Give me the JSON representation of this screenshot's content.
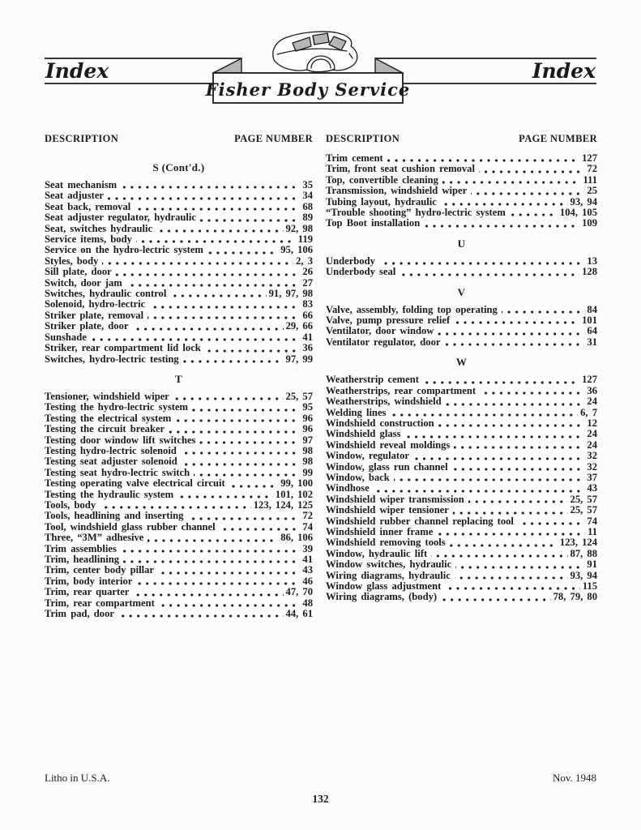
{
  "header": {
    "left_title": "Index",
    "right_title": "Index",
    "banner_title": "Fisher Body Service"
  },
  "column_headers": {
    "description": "DESCRIPTION",
    "page_number": "PAGE NUMBER"
  },
  "columns": [
    {
      "sections": [
        {
          "heading": "S (Cont'd.)",
          "entries": [
            {
              "label": "Seat mechanism",
              "pages": "35"
            },
            {
              "label": "Seat adjuster",
              "pages": "34"
            },
            {
              "label": "Seat back, removal",
              "pages": "68"
            },
            {
              "label": "Seat adjuster regulator, hydraulic",
              "pages": "89"
            },
            {
              "label": "Seat, switches hydraulic",
              "pages": "92, 98"
            },
            {
              "label": "Service items, body",
              "pages": "119"
            },
            {
              "label": "Service on the hydro-lectric system",
              "pages": "95, 106"
            },
            {
              "label": "Styles, body",
              "pages": "2, 3"
            },
            {
              "label": "Sill plate, door",
              "pages": "26"
            },
            {
              "label": "Switch, door jam",
              "pages": "27"
            },
            {
              "label": "Switches, hydraulic control",
              "pages": "91, 97, 98"
            },
            {
              "label": "Solenoid, hydro-lectric",
              "pages": "83"
            },
            {
              "label": "Striker plate, removal",
              "pages": "66"
            },
            {
              "label": "Striker plate, door",
              "pages": "29, 66"
            },
            {
              "label": "Sunshade",
              "pages": "41"
            },
            {
              "label": "Striker, rear compartment lid lock",
              "pages": "36"
            },
            {
              "label": "Switches, hydro-lectric testing",
              "pages": "97, 99"
            }
          ]
        },
        {
          "heading": "T",
          "entries": [
            {
              "label": "Tensioner, windshield wiper",
              "pages": "25, 57"
            },
            {
              "label": "Testing the hydro-lectric system",
              "pages": "95"
            },
            {
              "label": "Testing the electrical system",
              "pages": "96"
            },
            {
              "label": "Testing the circuit breaker",
              "pages": "96"
            },
            {
              "label": "Testing door window lift switches",
              "pages": "97"
            },
            {
              "label": "Testing hydro-lectric solenoid",
              "pages": "98"
            },
            {
              "label": "Testing seat adjuster solenoid",
              "pages": "98"
            },
            {
              "label": "Testing seat hydro-lectric switch",
              "pages": "99"
            },
            {
              "label": "Testing operating valve electrical circuit",
              "pages": "99, 100"
            },
            {
              "label": "Testing the hydraulic system",
              "pages": "101, 102"
            },
            {
              "label": "Tools, body",
              "pages": "123, 124, 125"
            },
            {
              "label": "Tools, headlining and inserting",
              "pages": "72"
            },
            {
              "label": "Tool, windshield glass rubber channel",
              "pages": "74"
            },
            {
              "label": "Three, “3M” adhesive",
              "pages": "86, 106"
            },
            {
              "label": "Trim assemblies",
              "pages": "39"
            },
            {
              "label": "Trim, headlining",
              "pages": "41"
            },
            {
              "label": "Trim, center body pillar",
              "pages": "43"
            },
            {
              "label": "Trim, body interior",
              "pages": "46"
            },
            {
              "label": "Trim, rear quarter",
              "pages": "47, 70"
            },
            {
              "label": "Trim, rear compartment",
              "pages": "48"
            },
            {
              "label": "Trim pad, door",
              "pages": "44, 61"
            }
          ]
        }
      ]
    },
    {
      "sections": [
        {
          "heading": "",
          "entries": [
            {
              "label": "Trim cement",
              "pages": "127"
            },
            {
              "label": "Trim, front seat cushion removal",
              "pages": "72"
            },
            {
              "label": "Top, convertible cleaning",
              "pages": "111"
            },
            {
              "label": "Transmission, windshield wiper",
              "pages": "25"
            },
            {
              "label": "Tubing layout, hydraulic",
              "pages": "93, 94"
            },
            {
              "label": "“Trouble shooting” hydro-lectric system",
              "pages": "104, 105"
            },
            {
              "label": "Top Boot installation",
              "pages": "109"
            }
          ]
        },
        {
          "heading": "U",
          "entries": [
            {
              "label": "Underbody",
              "pages": "13"
            },
            {
              "label": "Underbody seal",
              "pages": "128"
            }
          ]
        },
        {
          "heading": "V",
          "entries": [
            {
              "label": "Valve, assembly, folding top operating",
              "pages": "84"
            },
            {
              "label": "Valve, pump pressure relief",
              "pages": "101"
            },
            {
              "label": "Ventilator, door window",
              "pages": "64"
            },
            {
              "label": "Ventilator regulator, door",
              "pages": "31"
            }
          ]
        },
        {
          "heading": "W",
          "entries": [
            {
              "label": "Weatherstrip cement",
              "pages": "127"
            },
            {
              "label": "Weatherstrips, rear compartment",
              "pages": "36"
            },
            {
              "label": "Weatherstrips, windshield",
              "pages": "24"
            },
            {
              "label": "Welding lines",
              "pages": "6, 7"
            },
            {
              "label": "Windshield construction",
              "pages": "12"
            },
            {
              "label": "Windshield glass",
              "pages": "24"
            },
            {
              "label": "Windshield reveal moldings",
              "pages": "24"
            },
            {
              "label": "Window, regulator",
              "pages": "32"
            },
            {
              "label": "Window, glass run channel",
              "pages": "32"
            },
            {
              "label": "Window, back",
              "pages": "37"
            },
            {
              "label": "Windhose",
              "pages": "43"
            },
            {
              "label": "Windshield wiper transmission",
              "pages": "25, 57"
            },
            {
              "label": "Windshield wiper tensioner",
              "pages": "25, 57"
            },
            {
              "label": "Windshield rubber channel replacing tool",
              "pages": "74"
            },
            {
              "label": "Windshield inner frame",
              "pages": "11"
            },
            {
              "label": "Windshield removing tools",
              "pages": "123, 124"
            },
            {
              "label": "Window, hydraulic lift",
              "pages": "87, 88"
            },
            {
              "label": "Window switches, hydraulic",
              "pages": "91"
            },
            {
              "label": "Wiring diagrams, hydraulic",
              "pages": "93, 94"
            },
            {
              "label": "Window glass adjustment",
              "pages": "115"
            },
            {
              "label": "Wiring diagrams, (body)",
              "pages": "78, 79, 80"
            }
          ]
        }
      ]
    }
  ],
  "footer": {
    "left": "Litho in U.S.A.",
    "right": "Nov. 1948",
    "page_number": "132"
  },
  "colors": {
    "ink": "#1b1b1b",
    "paper": "#fcfcfa",
    "ribbon_shade": "#b5b5b5"
  }
}
